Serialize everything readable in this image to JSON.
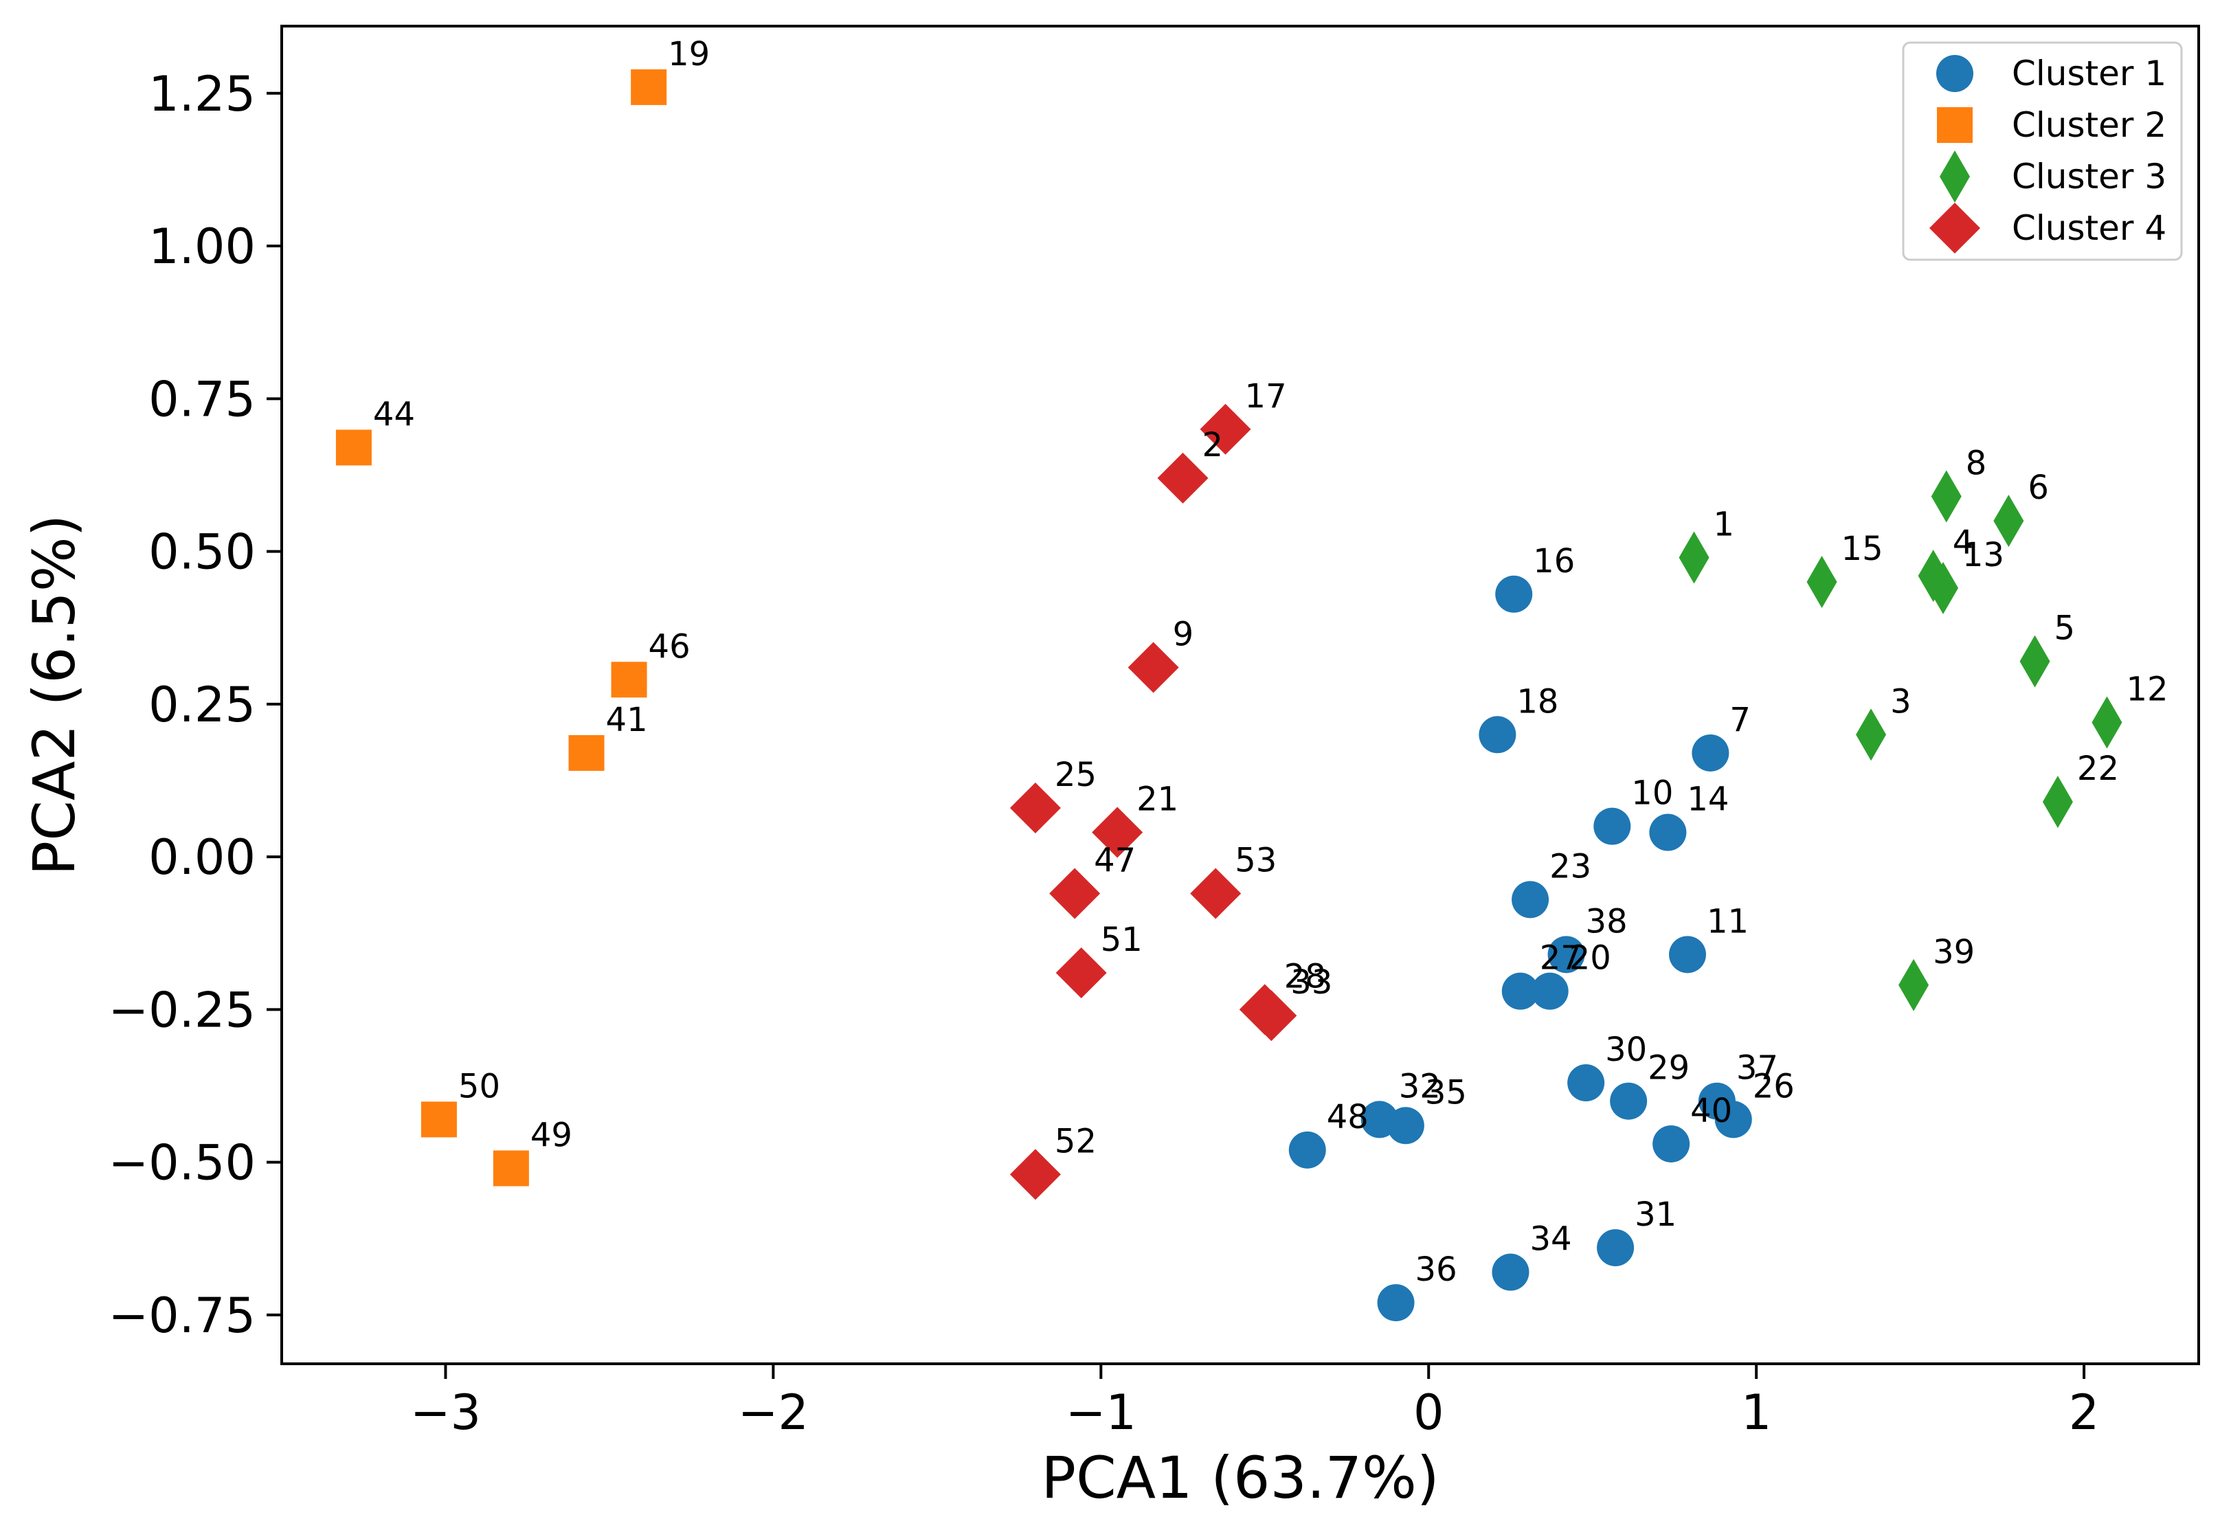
{
  "chart_data": {
    "type": "scatter",
    "title": "",
    "xlabel": "PCA1 (63.7%)",
    "ylabel": "PCA2 (6.5%)",
    "xlim": [
      -3.5,
      2.35
    ],
    "ylim": [
      -0.83,
      1.36
    ],
    "xticks": [
      -3,
      -2,
      -1,
      0,
      1,
      2
    ],
    "xtick_labels": [
      "−3",
      "−2",
      "−1",
      "0",
      "1",
      "2"
    ],
    "yticks": [
      -0.75,
      -0.5,
      -0.25,
      0.0,
      0.25,
      0.5,
      0.75,
      1.0,
      1.25
    ],
    "ytick_labels": [
      "−0.75",
      "−0.50",
      "−0.25",
      "0.00",
      "0.25",
      "0.50",
      "0.75",
      "1.00",
      "1.25"
    ],
    "grid": false,
    "legend_position": "top-right",
    "series": [
      {
        "name": "Cluster 1",
        "marker": "circle",
        "color": "#1f77b4",
        "points": [
          {
            "label": "16",
            "x": 0.26,
            "y": 0.43
          },
          {
            "label": "18",
            "x": 0.21,
            "y": 0.2
          },
          {
            "label": "7",
            "x": 0.86,
            "y": 0.17
          },
          {
            "label": "10",
            "x": 0.56,
            "y": 0.05
          },
          {
            "label": "14",
            "x": 0.73,
            "y": 0.04
          },
          {
            "label": "23",
            "x": 0.31,
            "y": -0.07
          },
          {
            "label": "38",
            "x": 0.42,
            "y": -0.16
          },
          {
            "label": "11",
            "x": 0.79,
            "y": -0.16
          },
          {
            "label": "27",
            "x": 0.28,
            "y": -0.22
          },
          {
            "label": "20",
            "x": 0.37,
            "y": -0.22
          },
          {
            "label": "30",
            "x": 0.48,
            "y": -0.37
          },
          {
            "label": "29",
            "x": 0.61,
            "y": -0.4
          },
          {
            "label": "37",
            "x": 0.88,
            "y": -0.4
          },
          {
            "label": "26",
            "x": 0.93,
            "y": -0.43
          },
          {
            "label": "40",
            "x": 0.74,
            "y": -0.47
          },
          {
            "label": "32",
            "x": -0.15,
            "y": -0.43
          },
          {
            "label": "35",
            "x": -0.07,
            "y": -0.44
          },
          {
            "label": "48",
            "x": -0.37,
            "y": -0.48
          },
          {
            "label": "31",
            "x": 0.57,
            "y": -0.64
          },
          {
            "label": "34",
            "x": 0.25,
            "y": -0.68
          },
          {
            "label": "36",
            "x": -0.1,
            "y": -0.73
          }
        ]
      },
      {
        "name": "Cluster 2",
        "marker": "square",
        "color": "#ff7f0e",
        "points": [
          {
            "label": "19",
            "x": -2.38,
            "y": 1.26
          },
          {
            "label": "44",
            "x": -3.28,
            "y": 0.67
          },
          {
            "label": "46",
            "x": -2.44,
            "y": 0.29
          },
          {
            "label": "41",
            "x": -2.57,
            "y": 0.17
          },
          {
            "label": "50",
            "x": -3.02,
            "y": -0.43
          },
          {
            "label": "49",
            "x": -2.8,
            "y": -0.51
          }
        ]
      },
      {
        "name": "Cluster 3",
        "marker": "thin_diamond",
        "color": "#2ca02c",
        "points": [
          {
            "label": "8",
            "x": 1.58,
            "y": 0.59
          },
          {
            "label": "6",
            "x": 1.77,
            "y": 0.55
          },
          {
            "label": "1",
            "x": 0.81,
            "y": 0.49
          },
          {
            "label": "15",
            "x": 1.2,
            "y": 0.45
          },
          {
            "label": "4",
            "x": 1.54,
            "y": 0.46
          },
          {
            "label": "13",
            "x": 1.57,
            "y": 0.44
          },
          {
            "label": "5",
            "x": 1.85,
            "y": 0.32
          },
          {
            "label": "3",
            "x": 1.35,
            "y": 0.2
          },
          {
            "label": "12",
            "x": 2.07,
            "y": 0.22
          },
          {
            "label": "22",
            "x": 1.92,
            "y": 0.09
          },
          {
            "label": "39",
            "x": 1.48,
            "y": -0.21
          }
        ]
      },
      {
        "name": "Cluster 4",
        "marker": "diamond",
        "color": "#d62728",
        "points": [
          {
            "label": "17",
            "x": -0.62,
            "y": 0.7
          },
          {
            "label": "2",
            "x": -0.75,
            "y": 0.62
          },
          {
            "label": "9",
            "x": -0.84,
            "y": 0.31
          },
          {
            "label": "25",
            "x": -1.2,
            "y": 0.08
          },
          {
            "label": "21",
            "x": -0.95,
            "y": 0.04
          },
          {
            "label": "47",
            "x": -1.08,
            "y": -0.06
          },
          {
            "label": "53",
            "x": -0.65,
            "y": -0.06
          },
          {
            "label": "51",
            "x": -1.06,
            "y": -0.19
          },
          {
            "label": "28",
            "x": -0.5,
            "y": -0.25
          },
          {
            "label": "33",
            "x": -0.48,
            "y": -0.26
          },
          {
            "label": "52",
            "x": -1.2,
            "y": -0.52
          }
        ]
      }
    ]
  }
}
